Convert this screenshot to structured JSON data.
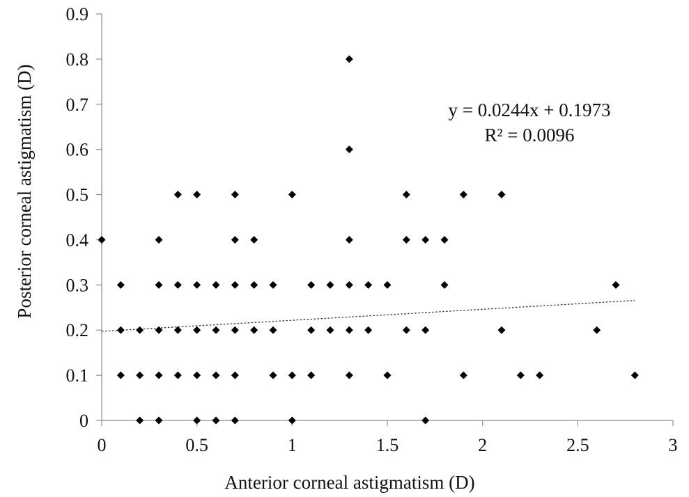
{
  "chart_data": {
    "type": "scatter",
    "title": "",
    "xlabel": "Anterior corneal astigmatism (D)",
    "ylabel": "Posterior corneal astigmatism (D)",
    "xlim": [
      0,
      3
    ],
    "ylim": [
      0,
      0.9
    ],
    "x_ticks": [
      "0",
      "0.5",
      "1",
      "1.5",
      "2",
      "2.5",
      "3"
    ],
    "y_ticks": [
      "0",
      "0.1",
      "0.2",
      "0.3",
      "0.4",
      "0.5",
      "0.6",
      "0.7",
      "0.8",
      "0.9"
    ],
    "grid": false,
    "legend": "none",
    "marker_color": "#000000",
    "series": [
      {
        "points": [
          [
            0,
            0.4
          ],
          [
            0.1,
            0.3
          ],
          [
            0.1,
            0.2
          ],
          [
            0.1,
            0.1
          ],
          [
            0.2,
            0.2
          ],
          [
            0.2,
            0.1
          ],
          [
            0.2,
            0
          ],
          [
            0.3,
            0.4
          ],
          [
            0.3,
            0.3
          ],
          [
            0.3,
            0.2
          ],
          [
            0.3,
            0.1
          ],
          [
            0.3,
            0
          ],
          [
            0.4,
            0.5
          ],
          [
            0.4,
            0.3
          ],
          [
            0.4,
            0.2
          ],
          [
            0.4,
            0.1
          ],
          [
            0.5,
            0.5
          ],
          [
            0.5,
            0.3
          ],
          [
            0.5,
            0.2
          ],
          [
            0.5,
            0.1
          ],
          [
            0.5,
            0
          ],
          [
            0.6,
            0.3
          ],
          [
            0.6,
            0.2
          ],
          [
            0.6,
            0.1
          ],
          [
            0.6,
            0
          ],
          [
            0.7,
            0.5
          ],
          [
            0.7,
            0.4
          ],
          [
            0.7,
            0.3
          ],
          [
            0.7,
            0.2
          ],
          [
            0.7,
            0.1
          ],
          [
            0.7,
            0
          ],
          [
            0.8,
            0.4
          ],
          [
            0.8,
            0.3
          ],
          [
            0.8,
            0.2
          ],
          [
            0.9,
            0.3
          ],
          [
            0.9,
            0.2
          ],
          [
            0.9,
            0.1
          ],
          [
            1.0,
            0.5
          ],
          [
            1.0,
            0.1
          ],
          [
            1.0,
            0
          ],
          [
            1.1,
            0.3
          ],
          [
            1.1,
            0.2
          ],
          [
            1.1,
            0.1
          ],
          [
            1.2,
            0.3
          ],
          [
            1.2,
            0.2
          ],
          [
            1.3,
            0.8
          ],
          [
            1.3,
            0.6
          ],
          [
            1.3,
            0.4
          ],
          [
            1.3,
            0.3
          ],
          [
            1.3,
            0.2
          ],
          [
            1.3,
            0.1
          ],
          [
            1.4,
            0.3
          ],
          [
            1.4,
            0.2
          ],
          [
            1.5,
            0.3
          ],
          [
            1.5,
            0.1
          ],
          [
            1.6,
            0.5
          ],
          [
            1.6,
            0.4
          ],
          [
            1.6,
            0.2
          ],
          [
            1.7,
            0.4
          ],
          [
            1.7,
            0.2
          ],
          [
            1.7,
            0
          ],
          [
            1.8,
            0.4
          ],
          [
            1.8,
            0.3
          ],
          [
            1.9,
            0.5
          ],
          [
            1.9,
            0.1
          ],
          [
            2.1,
            0.5
          ],
          [
            2.1,
            0.2
          ],
          [
            2.2,
            0.1
          ],
          [
            2.3,
            0.1
          ],
          [
            2.6,
            0.2
          ],
          [
            2.7,
            0.3
          ],
          [
            2.8,
            0.1
          ]
        ]
      }
    ],
    "trendline": {
      "type": "linear",
      "slope": 0.0244,
      "intercept": 0.1973,
      "x_range": [
        0,
        2.8
      ],
      "style": "dotted",
      "equation_label": "y = 0.0244x + 0.1973",
      "r2_label": "R² = 0.0096"
    }
  }
}
